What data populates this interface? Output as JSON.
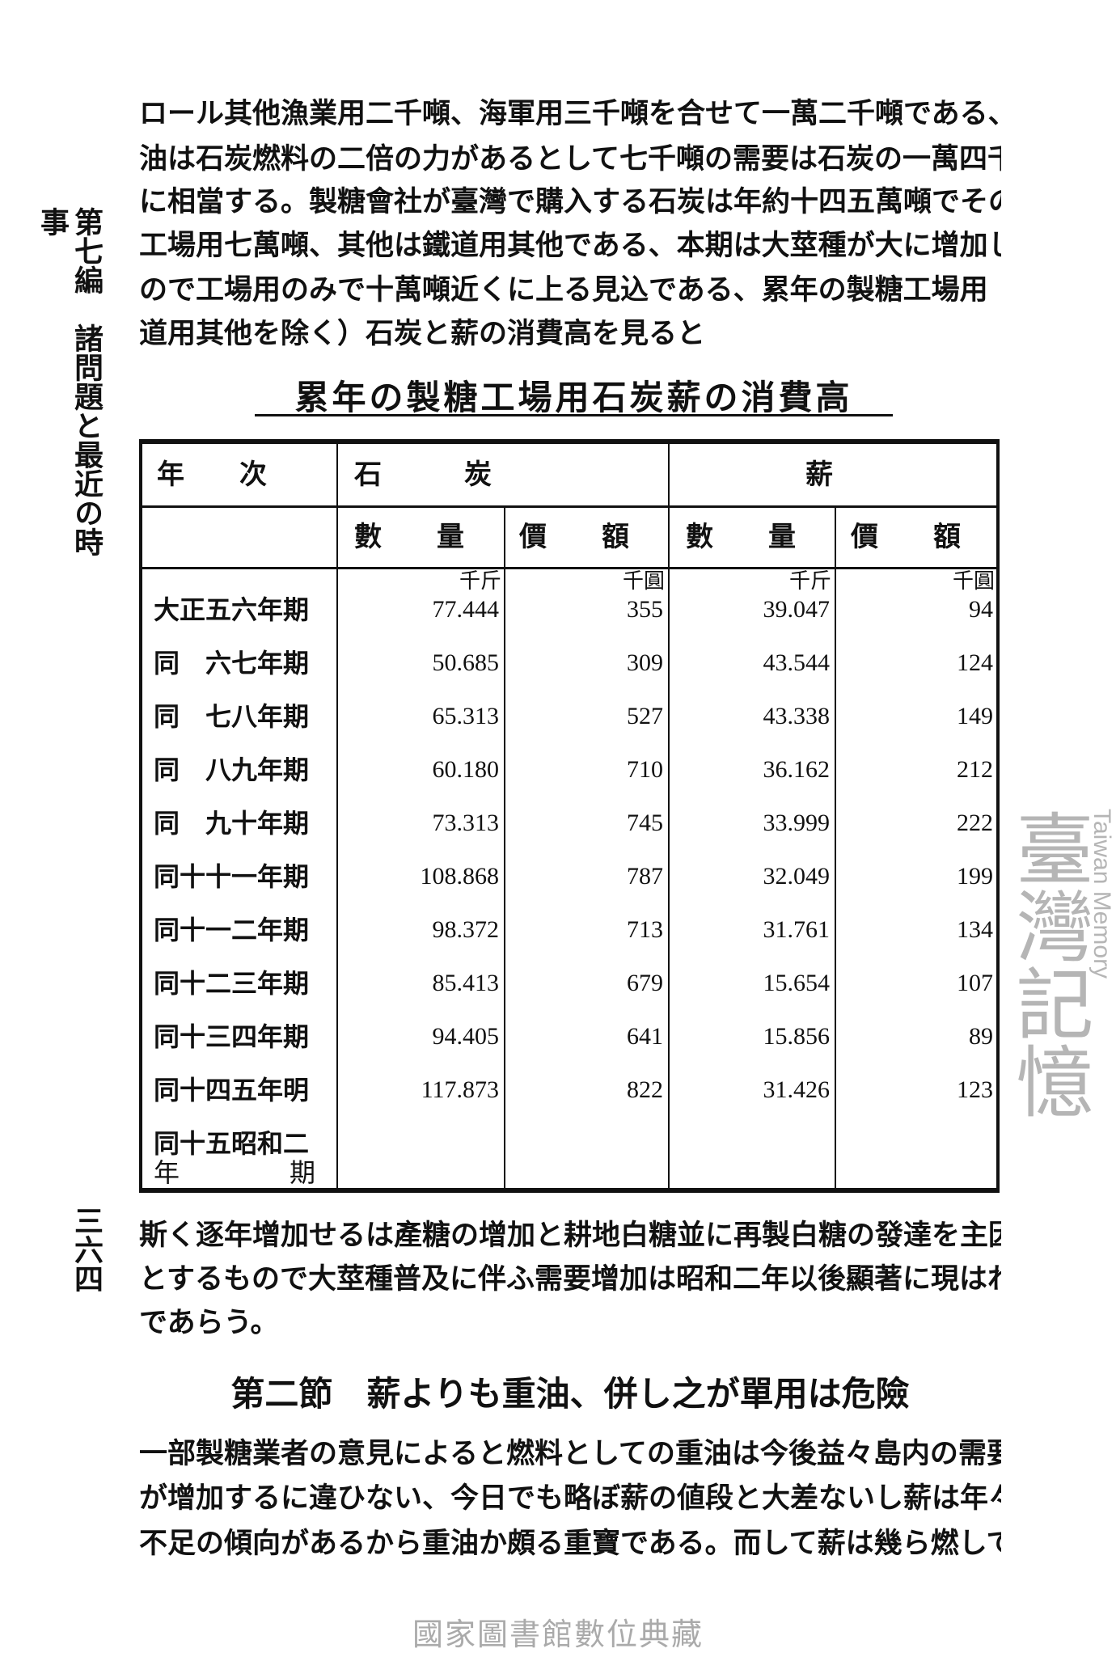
{
  "margin": {
    "chapter": "第七編　諸問題と最近の時事",
    "page_number": "三六四"
  },
  "para1": [
    "ロール其他漁業用二千噸、海軍用三千噸を合せて一萬二千噸である、重",
    "油は石炭燃料の二倍の力があるとして七千噸の需要は石炭の一萬四千噸",
    "に相當する。製糖會社が臺灣で購入する石炭は年約十四五萬噸でその内",
    "工場用七萬噸、其他は鐵道用其他である、本期は大莖種が大に增加した",
    "ので工場用のみで十萬噸近くに上る見込である、累年の製糖工場用（鐵",
    "道用其他を除く）石炭と薪の消費高を見ると"
  ],
  "table": {
    "title": "累年の製糖工場用石炭薪の消費高",
    "header": {
      "year": "年　　次",
      "coal": "石　　　炭",
      "wood": "薪",
      "quantity": "數　　量",
      "value": "價　　額"
    },
    "units": {
      "quantity": "千斤",
      "value": "千圓"
    },
    "rows": [
      {
        "year": "大正五六年期",
        "coal_qty": "77.444",
        "coal_val": "355",
        "wood_qty": "39.047",
        "wood_val": "94"
      },
      {
        "year": "同　六七年期",
        "coal_qty": "50.685",
        "coal_val": "309",
        "wood_qty": "43.544",
        "wood_val": "124"
      },
      {
        "year": "同　七八年期",
        "coal_qty": "65.313",
        "coal_val": "527",
        "wood_qty": "43.338",
        "wood_val": "149"
      },
      {
        "year": "同　八九年期",
        "coal_qty": "60.180",
        "coal_val": "710",
        "wood_qty": "36.162",
        "wood_val": "212"
      },
      {
        "year": "同　九十年期",
        "coal_qty": "73.313",
        "coal_val": "745",
        "wood_qty": "33.999",
        "wood_val": "222"
      },
      {
        "year": "同十十一年期",
        "coal_qty": "108.868",
        "coal_val": "787",
        "wood_qty": "32.049",
        "wood_val": "199"
      },
      {
        "year": "同十一二年期",
        "coal_qty": "98.372",
        "coal_val": "713",
        "wood_qty": "31.761",
        "wood_val": "134"
      },
      {
        "year": "同十二三年期",
        "coal_qty": "85.413",
        "coal_val": "679",
        "wood_qty": "15.654",
        "wood_val": "107"
      },
      {
        "year": "同十三四年期",
        "coal_qty": "94.405",
        "coal_val": "641",
        "wood_qty": "15.856",
        "wood_val": "89"
      },
      {
        "year": "同十四五年明",
        "coal_qty": "117.873",
        "coal_val": "822",
        "wood_qty": "31.426",
        "wood_val": "123"
      },
      {
        "year": "同十五昭和二",
        "year2a": "年",
        "year2b": "期",
        "coal_qty": "",
        "coal_val": "",
        "wood_qty": "",
        "wood_val": ""
      }
    ]
  },
  "para2": [
    "斯く逐年增加せるは產糖の增加と耕地白糖並に再製白糖の發達を主因",
    "とするもので大莖種普及に伴ふ需要增加は昭和二年以後顯著に現はれる",
    "であらう。"
  ],
  "heading": "第二節　薪よりも重油、併し之が單用は危險",
  "para3": [
    "一部製糖業者の意見によると燃料としての重油は今後益々島内の需要",
    "が增加するに違ひない、今日でも略ぼ薪の値段と大差ないし薪は年々",
    "不足の傾向があるから重油か頗る重寶である。而して薪は幾ら燃しても"
  ],
  "watermark": {
    "main": "臺灣記憶",
    "sub": "Taiwan Memory"
  },
  "footer": "國家圖書館數位典藏"
}
